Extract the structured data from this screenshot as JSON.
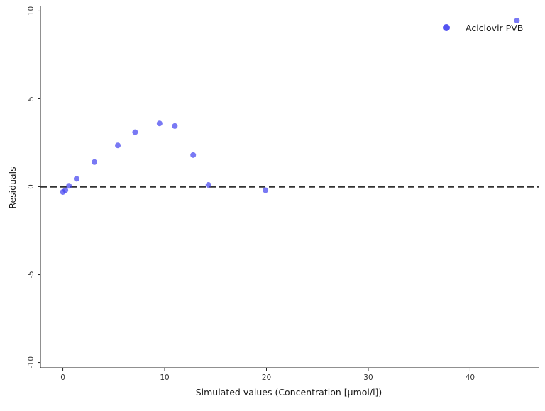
{
  "chart_data": {
    "type": "scatter",
    "title": "",
    "xlabel": "Simulated values (Concentration [µmol/l])",
    "ylabel": "Residuals",
    "xlim": [
      -2.2,
      46.8
    ],
    "ylim": [
      -10.3,
      10.3
    ],
    "x_ticks": [
      0,
      10,
      20,
      30,
      40
    ],
    "y_ticks": [
      -10,
      -5,
      0,
      5,
      10
    ],
    "x_tick_labels": [
      "0",
      "10",
      "20",
      "30",
      "40"
    ],
    "y_tick_labels": [
      "-10",
      "-5",
      "0",
      "5",
      "10"
    ],
    "grid": false,
    "reference_line": {
      "y": 0,
      "style": "dashed",
      "color": "#333333"
    },
    "legend": {
      "position": "top-right"
    },
    "series": [
      {
        "name": "Aciclovir PVB",
        "color": "#4040f0",
        "x": [
          0.0,
          0.25,
          0.6,
          1.35,
          3.1,
          5.4,
          7.1,
          9.5,
          11.0,
          12.8,
          14.3,
          19.9,
          44.6
        ],
        "y": [
          -0.3,
          -0.2,
          0.05,
          0.45,
          1.4,
          2.35,
          3.1,
          3.6,
          3.45,
          1.8,
          0.1,
          -0.2,
          9.45
        ]
      }
    ]
  }
}
